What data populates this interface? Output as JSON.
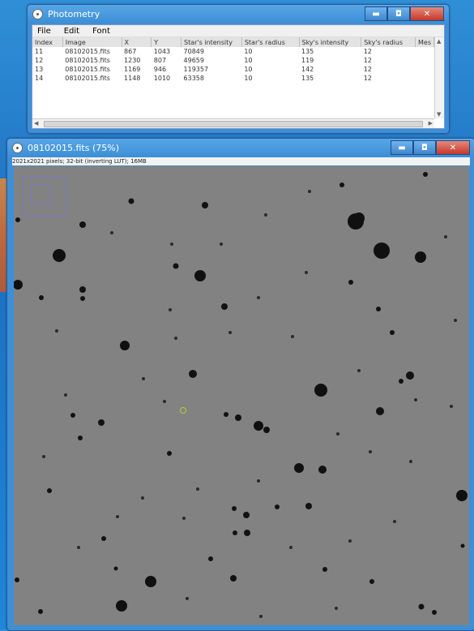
{
  "photometry": {
    "title": "Photometry",
    "menus": [
      "File",
      "Edit",
      "Font"
    ],
    "columns": [
      "Index",
      "Image",
      "X",
      "Y",
      "Star's intensity",
      "Star's radius",
      "Sky's intensity",
      "Sky's radius",
      "Mes"
    ],
    "rows": [
      [
        "11",
        "08102015.fits",
        "867",
        "1043",
        "70849",
        "10",
        "135",
        "12"
      ],
      [
        "12",
        "08102015.fits",
        "1230",
        "807",
        "49659",
        "10",
        "119",
        "12"
      ],
      [
        "13",
        "08102015.fits",
        "1169",
        "946",
        "119357",
        "10",
        "142",
        "12"
      ],
      [
        "14",
        "08102015.fits",
        "1148",
        "1010",
        "63358",
        "10",
        "135",
        "12"
      ]
    ]
  },
  "image_window": {
    "title": "08102015.fits (75%)",
    "status": "2021x2021 pixels; 32-bit (inverting LUT); 16MB"
  },
  "window_buttons": {
    "minimize": "▬",
    "maximize": "◘",
    "close": "✕"
  },
  "colors": {
    "titlebar": "#3d8fd6",
    "sky": "#828282",
    "star": "#101010"
  }
}
